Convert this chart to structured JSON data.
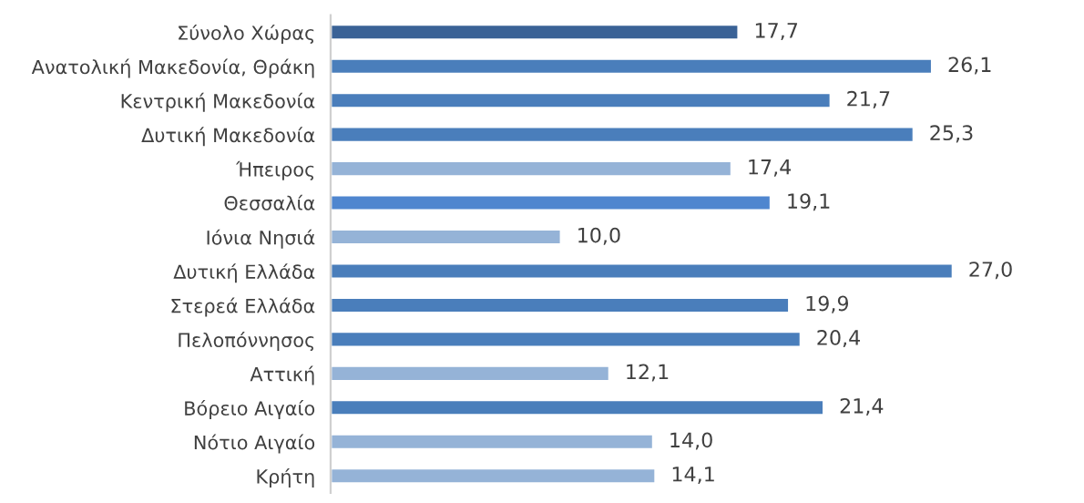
{
  "chart_data": {
    "type": "bar",
    "orientation": "horizontal",
    "categories": [
      "Σύνολο Χώρας",
      "Ανατολική Μακεδονία, Θράκη",
      "Κεντρική Μακεδονία",
      "Δυτική Μακεδονία",
      "Ήπειρος",
      "Θεσσαλία",
      "Ιόνια Νησιά",
      "Δυτική Ελλάδα",
      "Στερεά Ελλάδα",
      "Πελοπόννησος",
      "Αττική",
      "Βόρειο Αιγαίο",
      "Νότιο Αιγαίο",
      "Κρήτη"
    ],
    "values": [
      17.7,
      26.1,
      21.7,
      25.3,
      17.4,
      19.1,
      10.0,
      27.0,
      19.9,
      20.4,
      12.1,
      21.4,
      14.0,
      14.1
    ],
    "value_labels": [
      "17,7",
      "26,1",
      "21,7",
      "25,3",
      "17,4",
      "19,1",
      "10,0",
      "27,0",
      "19,9",
      "20,4",
      "12,1",
      "21,4",
      "14,0",
      "14,1"
    ],
    "colors": [
      "#3a6296",
      "#4a7ebb",
      "#4a7ebb",
      "#4a7ebb",
      "#95b3d7",
      "#4f86cf",
      "#95b3d7",
      "#4a7ebb",
      "#4a7ebb",
      "#4a7ebb",
      "#95b3d7",
      "#4a7ebb",
      "#95b3d7",
      "#95b3d7"
    ],
    "grid": false,
    "legend": false
  }
}
